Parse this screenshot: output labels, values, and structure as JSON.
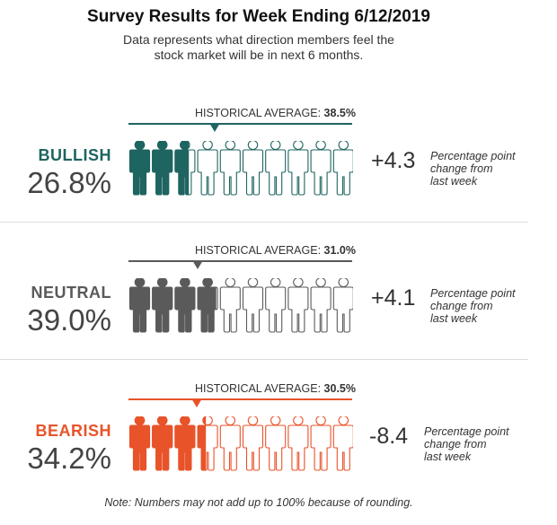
{
  "header": {
    "title": "Survey Results for Week Ending 6/12/2019",
    "subtitle_line1": "Data represents what direction members feel the",
    "subtitle_line2": "stock market will be in next 6 months."
  },
  "footnote": "Note: Numbers may not add up to 100% because of rounding.",
  "chart_data": {
    "type": "pictograph",
    "title": "Survey Results for Week Ending 6/12/2019",
    "icon": "person-icon",
    "icons_per_row": 10,
    "categories": [
      {
        "name": "BULLISH",
        "value_text": "26.8%",
        "value": 26.8,
        "color": "#1e6460",
        "historical_label": "HISTORICAL AVERAGE:",
        "historical_value_text": "38.5%",
        "historical_value": 38.5,
        "change_text": "+4.3",
        "change": 4.3,
        "change_note": [
          "Percentage point",
          "change from",
          "last week"
        ]
      },
      {
        "name": "NEUTRAL",
        "value_text": "39.0%",
        "value": 39.0,
        "color": "#5a5a5a",
        "historical_label": "HISTORICAL AVERAGE:",
        "historical_value_text": "31.0%",
        "historical_value": 31.0,
        "change_text": "+4.1",
        "change": 4.1,
        "change_note": [
          "Percentage point",
          "change from",
          "last week"
        ]
      },
      {
        "name": "BEARISH",
        "value_text": "34.2%",
        "value": 34.2,
        "color": "#e8532a",
        "historical_label": "HISTORICAL AVERAGE:",
        "historical_value_text": "30.5%",
        "historical_value": 30.5,
        "change_text": "-8.4",
        "change": -8.4,
        "change_note": [
          "Percentage point",
          "change from",
          "last week"
        ]
      }
    ]
  }
}
